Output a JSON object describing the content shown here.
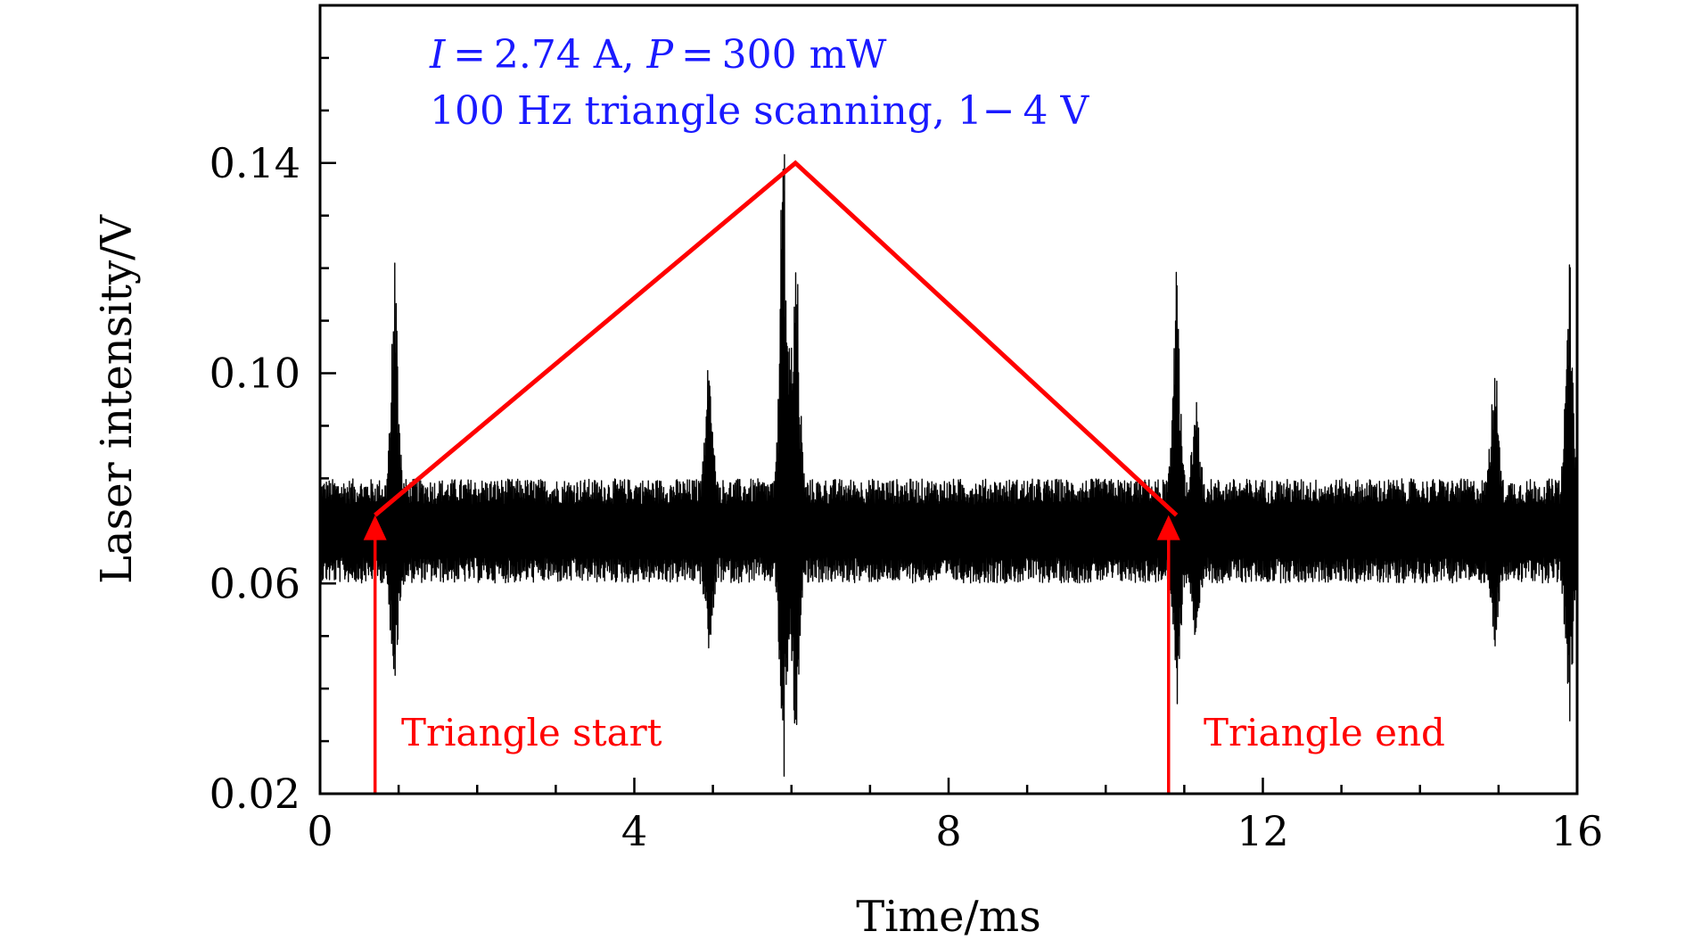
{
  "chart_data": {
    "type": "line",
    "xlabel": "Time/ms",
    "ylabel": "Laser intensity/V",
    "xlim": [
      0,
      16
    ],
    "ylim": [
      0.02,
      0.17
    ],
    "x_ticks": [
      "0",
      "4",
      "8",
      "12",
      "16"
    ],
    "y_ticks": [
      "0.02",
      "0.06",
      "0.10",
      "0.14"
    ],
    "grid": false,
    "annotations": {
      "line1": {
        "I_sym": "I",
        "I_rest": " = 2.74 A, ",
        "P_sym": "P",
        "P_rest": " = 300 mW"
      },
      "line2": "100 Hz triangle scanning, 1− 4 V",
      "start_label": "Triangle start",
      "end_label": "Triangle end"
    },
    "colors": {
      "signal": "#000000",
      "triangle": "#ff0000",
      "annotation": "#1a1aff"
    },
    "signal": {
      "description": "noisy laser intensity trace",
      "baseline": 0.07,
      "band": [
        0.061,
        0.079
      ],
      "spikes": [
        {
          "t": 0.95,
          "max": 0.12,
          "min": 0.044
        },
        {
          "t": 4.95,
          "max": 0.1,
          "min": 0.052
        },
        {
          "t": 5.9,
          "max": 0.157,
          "min": 0.024
        },
        {
          "t": 6.05,
          "max": 0.137,
          "min": 0.032
        },
        {
          "t": 10.9,
          "max": 0.117,
          "min": 0.041
        },
        {
          "t": 11.15,
          "max": 0.09,
          "min": 0.055
        },
        {
          "t": 14.95,
          "max": 0.1,
          "min": 0.052
        },
        {
          "t": 15.9,
          "max": 0.12,
          "min": 0.038
        }
      ]
    },
    "triangle": {
      "points": [
        [
          0.7,
          0.073
        ],
        [
          6.05,
          0.14
        ],
        [
          10.9,
          0.073
        ]
      ],
      "start_marker": {
        "t": 0.7,
        "y_from": 0.02,
        "y_to": 0.073
      },
      "end_marker": {
        "t": 10.8,
        "y_from": 0.02,
        "y_to": 0.073
      }
    }
  }
}
